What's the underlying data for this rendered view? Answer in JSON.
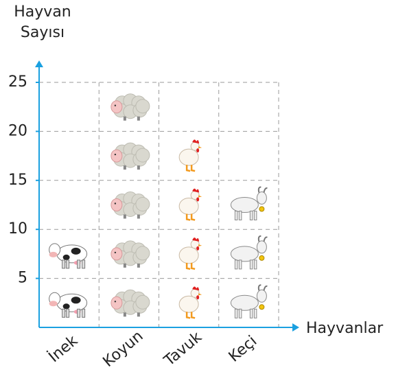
{
  "chart_data": {
    "type": "pictograph",
    "y_label": [
      "Hayvan",
      "Sayısı"
    ],
    "x_label": "Hayvanlar",
    "categories": [
      "İnek",
      "Koyun",
      "Tavuk",
      "Keçi"
    ],
    "values": [
      10,
      25,
      20,
      15
    ],
    "ylim": [
      0,
      25
    ],
    "yticks": [
      5,
      10,
      15,
      20,
      25
    ],
    "grid": true,
    "axis_color": "#1aa0e0"
  }
}
